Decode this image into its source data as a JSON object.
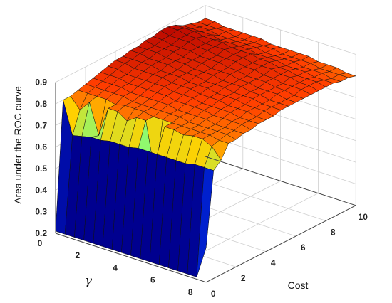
{
  "chart_data": {
    "type": "surface",
    "title": "",
    "xlabel": "Cost",
    "ylabel": "γ",
    "zlabel": "Area under the ROC curve",
    "xlim": [
      0,
      10
    ],
    "ylim": [
      0,
      8
    ],
    "zlim": [
      0.2,
      0.9
    ],
    "x_ticks": [
      "0",
      "2",
      "4",
      "6",
      "8",
      "10"
    ],
    "y_ticks": [
      "0",
      "2",
      "4",
      "6",
      "8"
    ],
    "z_ticks": [
      "0.2",
      "0.3",
      "0.4",
      "0.5",
      "0.6",
      "0.7",
      "0.8",
      "0.9"
    ],
    "grid": true,
    "colormap": [
      "#00008f",
      "#0038ff",
      "#00d8ff",
      "#7fff7f",
      "#ffd000",
      "#ff3c00",
      "#b00000"
    ],
    "cost_values": [
      0,
      0.5,
      1,
      1.5,
      2,
      2.5,
      3,
      3.5,
      4,
      4.5,
      5,
      5.5,
      6,
      6.5,
      7,
      7.5,
      8,
      8.5,
      9,
      9.5,
      10
    ],
    "gamma_values": [
      0,
      0.5,
      1,
      1.5,
      2,
      2.5,
      3,
      3.5,
      4,
      4.5,
      5,
      5.5,
      6,
      6.5,
      7,
      7.5,
      8
    ],
    "auc_grid": [
      [
        0.21,
        0.21,
        0.21,
        0.21,
        0.21,
        0.21,
        0.21,
        0.21,
        0.21,
        0.21,
        0.21,
        0.21,
        0.21,
        0.21,
        0.21,
        0.21,
        0.36
      ],
      [
        0.8,
        0.65,
        0.66,
        0.67,
        0.67,
        0.68,
        0.68,
        0.68,
        0.69,
        0.69,
        0.69,
        0.69,
        0.69,
        0.69,
        0.7,
        0.7,
        0.7
      ],
      [
        0.8,
        0.75,
        0.8,
        0.66,
        0.8,
        0.8,
        0.77,
        0.8,
        0.8,
        0.56,
        0.8,
        0.8,
        0.79,
        0.8,
        0.8,
        0.78,
        0.73
      ],
      [
        0.81,
        0.81,
        0.81,
        0.81,
        0.8,
        0.81,
        0.81,
        0.81,
        0.8,
        0.8,
        0.8,
        0.8,
        0.8,
        0.8,
        0.8,
        0.79,
        0.79
      ],
      [
        0.82,
        0.82,
        0.82,
        0.82,
        0.82,
        0.81,
        0.81,
        0.81,
        0.81,
        0.81,
        0.81,
        0.8,
        0.8,
        0.8,
        0.8,
        0.8,
        0.79
      ],
      [
        0.83,
        0.83,
        0.83,
        0.83,
        0.82,
        0.82,
        0.82,
        0.82,
        0.82,
        0.81,
        0.81,
        0.81,
        0.81,
        0.8,
        0.8,
        0.8,
        0.8
      ],
      [
        0.84,
        0.84,
        0.84,
        0.83,
        0.83,
        0.83,
        0.83,
        0.83,
        0.82,
        0.82,
        0.82,
        0.82,
        0.81,
        0.81,
        0.81,
        0.81,
        0.8
      ],
      [
        0.85,
        0.85,
        0.84,
        0.84,
        0.84,
        0.84,
        0.84,
        0.83,
        0.83,
        0.83,
        0.82,
        0.82,
        0.82,
        0.82,
        0.81,
        0.81,
        0.81
      ],
      [
        0.86,
        0.86,
        0.85,
        0.85,
        0.85,
        0.85,
        0.84,
        0.84,
        0.84,
        0.83,
        0.83,
        0.83,
        0.82,
        0.82,
        0.82,
        0.81,
        0.81
      ],
      [
        0.86,
        0.86,
        0.86,
        0.86,
        0.85,
        0.85,
        0.85,
        0.84,
        0.84,
        0.84,
        0.83,
        0.83,
        0.83,
        0.82,
        0.82,
        0.82,
        0.81
      ],
      [
        0.87,
        0.87,
        0.86,
        0.86,
        0.86,
        0.85,
        0.85,
        0.85,
        0.84,
        0.84,
        0.84,
        0.83,
        0.83,
        0.83,
        0.82,
        0.82,
        0.82
      ],
      [
        0.87,
        0.87,
        0.87,
        0.86,
        0.86,
        0.86,
        0.85,
        0.85,
        0.85,
        0.84,
        0.84,
        0.84,
        0.83,
        0.83,
        0.82,
        0.82,
        0.82
      ],
      [
        0.88,
        0.87,
        0.87,
        0.87,
        0.86,
        0.86,
        0.86,
        0.85,
        0.85,
        0.85,
        0.84,
        0.84,
        0.83,
        0.83,
        0.83,
        0.82,
        0.82
      ],
      [
        0.88,
        0.88,
        0.87,
        0.87,
        0.87,
        0.86,
        0.86,
        0.86,
        0.85,
        0.85,
        0.84,
        0.84,
        0.84,
        0.83,
        0.83,
        0.82,
        0.82
      ],
      [
        0.89,
        0.88,
        0.88,
        0.88,
        0.87,
        0.87,
        0.86,
        0.86,
        0.86,
        0.85,
        0.85,
        0.84,
        0.84,
        0.83,
        0.83,
        0.83,
        0.82
      ],
      [
        0.89,
        0.89,
        0.88,
        0.88,
        0.87,
        0.87,
        0.87,
        0.86,
        0.86,
        0.85,
        0.85,
        0.85,
        0.84,
        0.84,
        0.83,
        0.83,
        0.82
      ],
      [
        0.88,
        0.88,
        0.88,
        0.87,
        0.87,
        0.87,
        0.86,
        0.86,
        0.86,
        0.85,
        0.85,
        0.84,
        0.84,
        0.83,
        0.83,
        0.83,
        0.82
      ],
      [
        0.86,
        0.86,
        0.86,
        0.86,
        0.85,
        0.85,
        0.85,
        0.85,
        0.84,
        0.84,
        0.84,
        0.83,
        0.83,
        0.83,
        0.82,
        0.82,
        0.82
      ],
      [
        0.85,
        0.85,
        0.85,
        0.84,
        0.84,
        0.84,
        0.84,
        0.84,
        0.83,
        0.83,
        0.83,
        0.83,
        0.82,
        0.82,
        0.82,
        0.81,
        0.81
      ],
      [
        0.84,
        0.84,
        0.84,
        0.84,
        0.83,
        0.83,
        0.83,
        0.83,
        0.83,
        0.82,
        0.82,
        0.82,
        0.82,
        0.81,
        0.81,
        0.81,
        0.81
      ],
      [
        0.84,
        0.84,
        0.83,
        0.83,
        0.83,
        0.83,
        0.83,
        0.82,
        0.82,
        0.82,
        0.82,
        0.82,
        0.81,
        0.81,
        0.81,
        0.8,
        0.8
      ]
    ]
  }
}
